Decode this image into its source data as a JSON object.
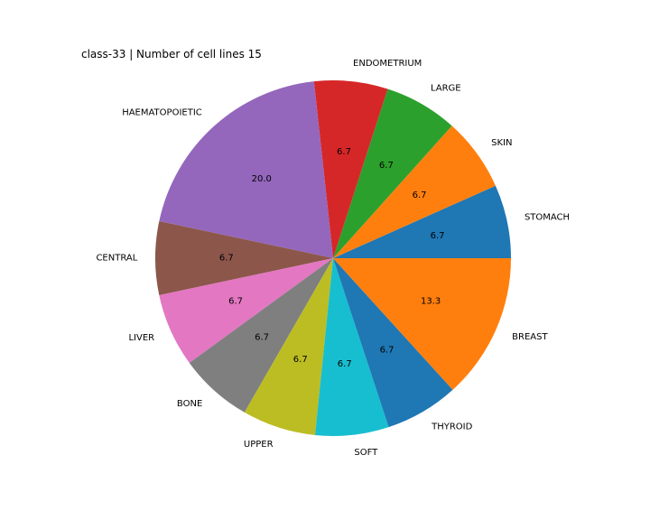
{
  "chart_data": {
    "type": "pie",
    "title": "class-33 | Number of cell lines 15",
    "start_angle_deg": 0,
    "direction": "counterclockwise",
    "value_format": "percent_1_decimal",
    "slices": [
      {
        "label": "STOMACH",
        "value": 6.7,
        "color": "#1f77b4"
      },
      {
        "label": "SKIN",
        "value": 6.7,
        "color": "#ff7f0e"
      },
      {
        "label": "LARGE",
        "value": 6.7,
        "color": "#2ca02c"
      },
      {
        "label": "ENDOMETRIUM",
        "value": 6.7,
        "color": "#d62728"
      },
      {
        "label": "HAEMATOPOIETIC",
        "value": 20.0,
        "color": "#9467bd"
      },
      {
        "label": "CENTRAL",
        "value": 6.7,
        "color": "#8c564b"
      },
      {
        "label": "LIVER",
        "value": 6.7,
        "color": "#e377c2"
      },
      {
        "label": "BONE",
        "value": 6.7,
        "color": "#7f7f7f"
      },
      {
        "label": "UPPER",
        "value": 6.7,
        "color": "#bcbd22"
      },
      {
        "label": "SOFT",
        "value": 6.7,
        "color": "#17becf"
      },
      {
        "label": "THYROID",
        "value": 6.7,
        "color": "#1f77b4"
      },
      {
        "label": "BREAST",
        "value": 13.3,
        "color": "#ff7f0e"
      }
    ]
  }
}
